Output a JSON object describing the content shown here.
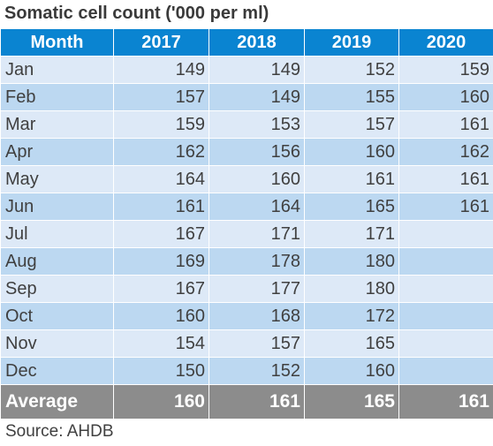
{
  "chart_data": {
    "type": "table",
    "title": "Somatic cell count ('000 per ml)",
    "columns": [
      "Month",
      "2017",
      "2018",
      "2019",
      "2020"
    ],
    "rows": [
      [
        "Jan",
        149,
        149,
        152,
        159
      ],
      [
        "Feb",
        157,
        149,
        155,
        160
      ],
      [
        "Mar",
        159,
        153,
        157,
        161
      ],
      [
        "Apr",
        162,
        156,
        160,
        162
      ],
      [
        "May",
        164,
        160,
        161,
        161
      ],
      [
        "Jun",
        161,
        164,
        165,
        161
      ],
      [
        "Jul",
        167,
        171,
        171,
        null
      ],
      [
        "Aug",
        169,
        178,
        180,
        null
      ],
      [
        "Sep",
        167,
        177,
        180,
        null
      ],
      [
        "Oct",
        160,
        168,
        172,
        null
      ],
      [
        "Nov",
        154,
        157,
        165,
        null
      ],
      [
        "Dec",
        150,
        152,
        160,
        null
      ]
    ],
    "footer": [
      "Average",
      160,
      161,
      165,
      161
    ],
    "source": "Source: AHDB"
  },
  "colors": {
    "header_bg": "#0a84d1",
    "row_light": "#dde9f7",
    "row_dark": "#bcd8f1",
    "footer_bg": "#8c8c8c"
  }
}
